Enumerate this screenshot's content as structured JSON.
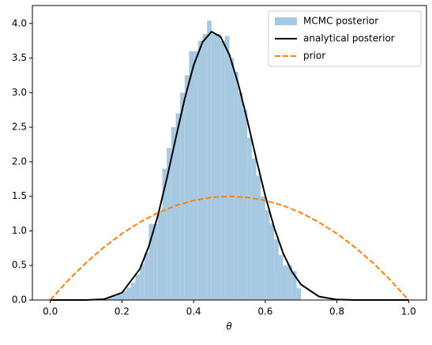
{
  "chart_data": {
    "type": "histogram",
    "xlabel": "θ",
    "xlim": [
      -0.05,
      1.05
    ],
    "ylim": [
      0,
      4.26
    ],
    "xticks": [
      {
        "value": 0,
        "label": "0.0"
      },
      0.2,
      0.4,
      0.6,
      0.8,
      {
        "value": 1,
        "label": "1.0"
      }
    ],
    "yticks": [
      {
        "value": 0,
        "label": "0.0"
      },
      0.5,
      {
        "value": 1,
        "label": "1.0"
      },
      1.5,
      {
        "value": 2,
        "label": "2.0"
      },
      2.5,
      {
        "value": 3,
        "label": "3.0"
      },
      3.5,
      {
        "value": 4,
        "label": "4.0"
      }
    ],
    "legend": "upper right",
    "series": [
      {
        "name": "MCMC posterior",
        "type": "histogram",
        "color": "#a6c9e1",
        "bins": [
          0.15,
          0.1625,
          0.175,
          0.1875,
          0.2,
          0.2125,
          0.225,
          0.2375,
          0.25,
          0.2625,
          0.275,
          0.2875,
          0.3,
          0.3125,
          0.325,
          0.3375,
          0.35,
          0.3625,
          0.375,
          0.3875,
          0.4,
          0.4125,
          0.425,
          0.4375,
          0.45,
          0.4625,
          0.475,
          0.4875,
          0.5,
          0.5125,
          0.525,
          0.5375,
          0.55,
          0.5625,
          0.575,
          0.5875,
          0.6,
          0.6125,
          0.625,
          0.6375,
          0.65,
          0.6625,
          0.675,
          0.6875,
          0.7
        ],
        "values": [
          0.02,
          0.04,
          0.06,
          0.08,
          0.13,
          0.18,
          0.25,
          0.37,
          0.52,
          0.68,
          1.1,
          1.1,
          1.27,
          1.9,
          2.2,
          2.5,
          2.7,
          3.0,
          3.25,
          3.6,
          3.6,
          3.75,
          3.85,
          4.04,
          3.85,
          3.85,
          3.75,
          3.82,
          3.5,
          3.3,
          3.0,
          2.75,
          2.35,
          2.05,
          1.8,
          1.5,
          1.3,
          1.1,
          0.88,
          0.65,
          0.5,
          0.5,
          0.42,
          0.17
        ]
      },
      {
        "name": "analytical posterior",
        "type": "line",
        "color": "#000000",
        "dashed": false,
        "x": [
          0,
          0.05,
          0.1,
          0.15,
          0.2,
          0.25,
          0.275,
          0.3,
          0.325,
          0.35,
          0.375,
          0.4,
          0.425,
          0.45,
          0.475,
          0.5,
          0.525,
          0.55,
          0.575,
          0.6,
          0.625,
          0.65,
          0.675,
          0.7,
          0.75,
          0.8,
          0.85,
          0.9,
          0.95,
          1
        ],
        "values": [
          0,
          0,
          0.0004,
          0.012,
          0.105,
          0.449,
          0.776,
          1.215,
          1.751,
          2.335,
          2.907,
          3.394,
          3.732,
          3.881,
          3.811,
          3.547,
          3.121,
          2.599,
          2.04,
          1.508,
          1.046,
          0.676,
          0.406,
          0.223,
          0.05,
          0.0065,
          0.0004,
          0,
          0,
          0
        ]
      },
      {
        "name": "prior",
        "type": "line",
        "color": "#ff7f0e",
        "dashed": true,
        "x": [
          0,
          0.05,
          0.1,
          0.15,
          0.2,
          0.25,
          0.3,
          0.35,
          0.4,
          0.45,
          0.5,
          0.55,
          0.6,
          0.65,
          0.7,
          0.75,
          0.8,
          0.85,
          0.9,
          0.95,
          1
        ],
        "values": [
          0,
          0.285,
          0.54,
          0.765,
          0.96,
          1.125,
          1.26,
          1.365,
          1.44,
          1.485,
          1.5,
          1.485,
          1.44,
          1.365,
          1.26,
          1.125,
          0.96,
          0.765,
          0.54,
          0.285,
          0
        ]
      }
    ]
  }
}
